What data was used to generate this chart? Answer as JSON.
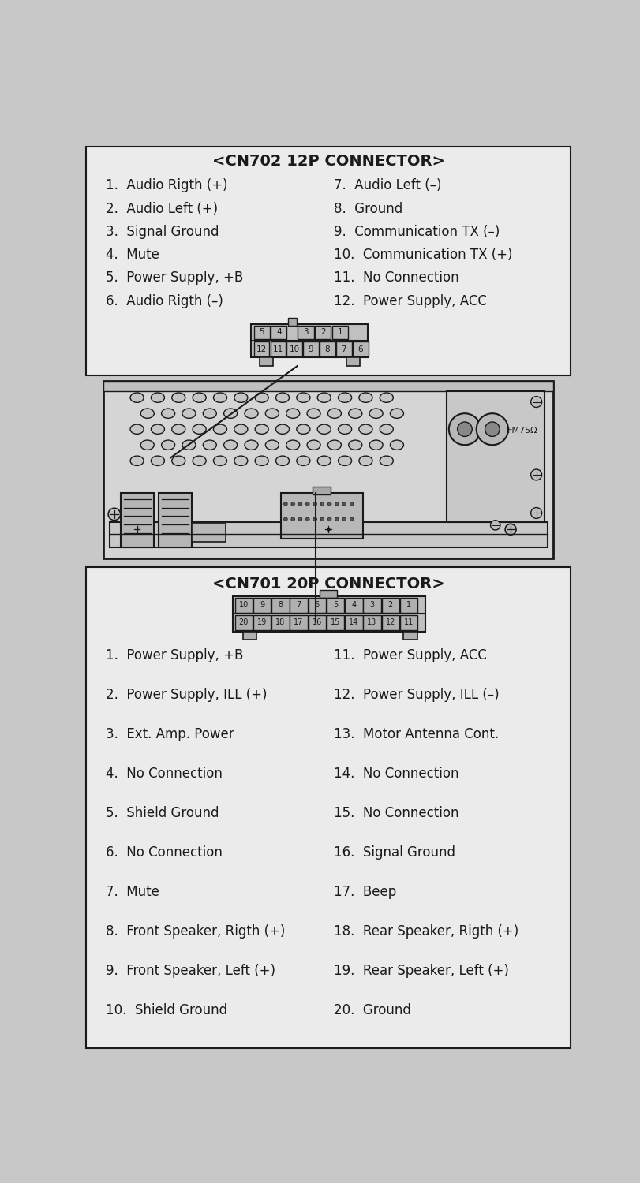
{
  "bg_color": "#c8c8c8",
  "box_fc": "#ebebeb",
  "lc": "#1a1a1a",
  "title1": "<CN702 12P CONNECTOR>",
  "cn702_left": [
    "1.  Audio Rigth (+)",
    "2.  Audio Left (+)",
    "3.  Signal Ground",
    "4.  Mute",
    "5.  Power Supply, +B",
    "6.  Audio Rigth (–)"
  ],
  "cn702_right": [
    "7.  Audio Left (–)",
    "8.  Ground",
    "9.  Communication TX (–)",
    "10.  Communication TX (+)",
    "11.  No Connection",
    "12.  Power Supply, ACC"
  ],
  "title2": "<CN701 20P CONNECTOR>",
  "cn701_left": [
    "1.  Power Supply, +B",
    "2.  Power Supply, ILL (+)",
    "3.  Ext. Amp. Power",
    "4.  No Connection",
    "5.  Shield Ground",
    "6.  No Connection",
    "7.  Mute",
    "8.  Front Speaker, Rigth (+)",
    "9.  Front Speaker, Left (+)",
    "10.  Shield Ground"
  ],
  "cn701_right": [
    "11.  Power Supply, ACC",
    "12.  Power Supply, ILL (–)",
    "13.  Motor Antenna Cont.",
    "14.  No Connection",
    "15.  No Connection",
    "16.  Signal Ground",
    "17.  Beep",
    "18.  Rear Speaker, Rigth (+)",
    "19.  Rear Speaker, Left (+)",
    "20.  Ground"
  ]
}
